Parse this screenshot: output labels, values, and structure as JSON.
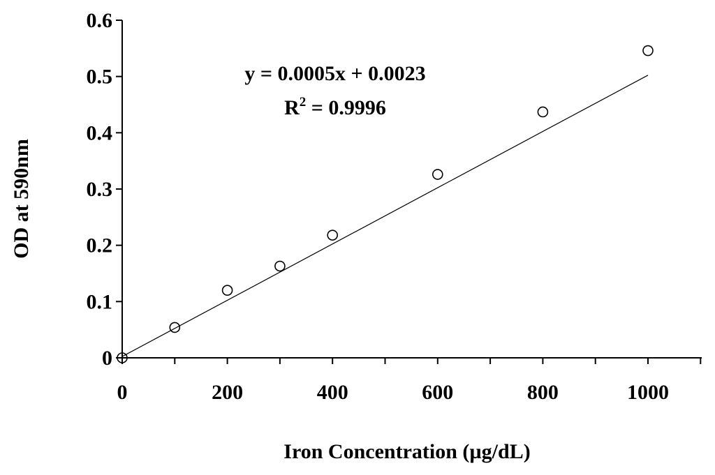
{
  "chart_data": {
    "type": "scatter",
    "title": "",
    "xlabel": "Iron Concentration (µg/dL)",
    "ylabel": "OD at 590nm",
    "xlim": [
      0,
      1100
    ],
    "ylim": [
      0,
      0.6
    ],
    "x_ticks": [
      "0",
      "200",
      "400",
      "600",
      "800",
      "1000"
    ],
    "y_ticks": [
      "0",
      "0.1",
      "0.2",
      "0.3",
      "0.4",
      "0.5",
      "0.6"
    ],
    "grid": false,
    "legend": "none",
    "series": [
      {
        "marker": "open-circle",
        "x": [
          0,
          100,
          200,
          300,
          400,
          600,
          800,
          1000
        ],
        "y": [
          0.0,
          0.054,
          0.12,
          0.163,
          0.218,
          0.326,
          0.437,
          0.546
        ]
      }
    ],
    "trendline": {
      "slope": 0.0005,
      "intercept": 0.0023,
      "x_range": [
        0,
        1000
      ],
      "equation": "y = 0.0005x + 0.0023",
      "r2_prefix": "R",
      "r2_exponent": "2",
      "r2_value": " = 0.9996"
    },
    "colors": {
      "axis": "#000000",
      "marker_stroke": "#000000",
      "trendline": "#000000"
    }
  }
}
